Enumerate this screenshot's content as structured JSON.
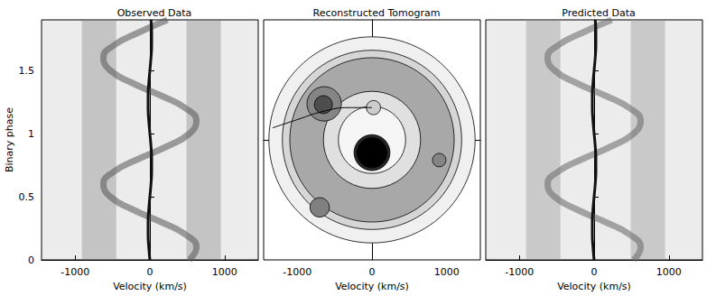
{
  "chart_data": [
    {
      "type": "line",
      "title": "Observed Data",
      "xlabel": "Velocity (km/s)",
      "ylabel": "Binary phase",
      "xlim": [
        -1450,
        1450
      ],
      "xticks": [
        -1000,
        0,
        1000
      ],
      "ylim": [
        0,
        1.9
      ],
      "yticks": [
        0,
        0.5,
        1,
        1.5
      ],
      "tick_labels": true,
      "series": [
        {
          "x": [
            -680,
            -680
          ],
          "y": [
            0,
            1.9
          ],
          "color": "#7a7a7a",
          "line_style": "band"
        },
        {
          "x": [
            720,
            720
          ],
          "y": [
            0,
            1.9
          ],
          "color": "#7a7a7a",
          "line_style": "band"
        },
        {
          "x": [
            530,
            623,
            478,
            150,
            -235,
            -530,
            -623,
            -478,
            -150,
            235,
            530,
            623,
            478,
            150,
            -235,
            -530,
            -623,
            -478,
            -150,
            235
          ],
          "y": [
            0,
            0.1,
            0.2,
            0.3,
            0.4,
            0.5,
            0.6,
            0.7,
            0.8,
            0.9,
            1.0,
            1.1,
            1.2,
            1.3,
            1.4,
            1.5,
            1.6,
            1.7,
            1.8,
            1.9
          ],
          "color": "#555555",
          "line_style": "broad"
        },
        {
          "x": [
            0,
            -15,
            -24,
            -24,
            -15,
            0,
            15,
            24,
            24,
            15,
            0,
            -15,
            -24,
            -24,
            -15,
            0,
            15,
            24,
            24,
            15
          ],
          "y": [
            0,
            0.1,
            0.2,
            0.3,
            0.4,
            0.5,
            0.6,
            0.7,
            0.8,
            0.9,
            1.0,
            1.1,
            1.2,
            1.3,
            1.4,
            1.5,
            1.6,
            1.7,
            1.8,
            1.9
          ],
          "color": "#111111",
          "line_style": "solid"
        }
      ]
    },
    {
      "type": "tomogram",
      "title": "Reconstructed Tomogram",
      "xlabel": "Velocity (km/s)",
      "xlim": [
        -1450,
        1450
      ],
      "xticks": [
        -1000,
        0,
        1000
      ],
      "ylim": [
        -1600,
        1600
      ],
      "tick_labels": "x",
      "ellipses": [
        {
          "x": 0,
          "y": 0,
          "r": 1380,
          "level": 0.06
        },
        {
          "x": 0,
          "y": 0,
          "r": 1200,
          "level": 0.16
        },
        {
          "x": 0,
          "y": 0,
          "r": 1100,
          "level": 0.34
        },
        {
          "x": -700,
          "y": -900,
          "r": 130,
          "level": 0.5
        },
        {
          "x": 900,
          "y": -270,
          "r": 90,
          "level": 0.48
        },
        {
          "x": 0,
          "y": 0,
          "r": 650,
          "level": 0.12
        },
        {
          "x": 0,
          "y": 0,
          "r": 450,
          "level": 0.04
        },
        {
          "x": -640,
          "y": 480,
          "r": 230,
          "level": 0.48
        },
        {
          "x": -650,
          "y": 470,
          "r": 120,
          "level": 0.7
        },
        {
          "x": 0,
          "y": -170,
          "r": 240,
          "level": 0.85
        },
        {
          "x": 0,
          "y": -170,
          "r": 200,
          "level": 1
        },
        {
          "x": 20,
          "y": 430,
          "r": 95,
          "level": 0.2
        }
      ],
      "series": [
        {
          "x": [
            -1330,
            -1000,
            -650,
            -300,
            0
          ],
          "y": [
            160,
            270,
            380,
            430,
            430
          ],
          "color": "#000000",
          "line_style": "thin"
        }
      ]
    },
    {
      "type": "line",
      "title": "Predicted Data",
      "xlabel": "Velocity (km/s)",
      "xlim": [
        -1450,
        1450
      ],
      "xticks": [
        -1000,
        0,
        1000
      ],
      "ylim": [
        0,
        1.9
      ],
      "yticks": [
        0,
        0.5,
        1,
        1.5
      ],
      "tick_labels": "x",
      "series": [
        {
          "x": [
            -680,
            -680
          ],
          "y": [
            0,
            1.9
          ],
          "color": "#8a8a8a",
          "line_style": "band"
        },
        {
          "x": [
            720,
            720
          ],
          "y": [
            0,
            1.9
          ],
          "color": "#8a8a8a",
          "line_style": "band"
        },
        {
          "x": [
            530,
            623,
            478,
            150,
            -235,
            -530,
            -623,
            -478,
            -150,
            235,
            530,
            623,
            478,
            150,
            -235,
            -530,
            -623,
            -478,
            -150,
            235
          ],
          "y": [
            0,
            0.1,
            0.2,
            0.3,
            0.4,
            0.5,
            0.6,
            0.7,
            0.8,
            0.9,
            1.0,
            1.1,
            1.2,
            1.3,
            1.4,
            1.5,
            1.6,
            1.7,
            1.8,
            1.9
          ],
          "color": "#666666",
          "line_style": "broad"
        },
        {
          "x": [
            0,
            -15,
            -24,
            -24,
            -15,
            0,
            15,
            24,
            24,
            15,
            0,
            -15,
            -24,
            -24,
            -15,
            0,
            15,
            24,
            24,
            15
          ],
          "y": [
            0,
            0.1,
            0.2,
            0.3,
            0.4,
            0.5,
            0.6,
            0.7,
            0.8,
            0.9,
            1.0,
            1.1,
            1.2,
            1.3,
            1.4,
            1.5,
            1.6,
            1.7,
            1.8,
            1.9
          ],
          "color": "#111111",
          "line_style": "solid"
        }
      ]
    }
  ]
}
